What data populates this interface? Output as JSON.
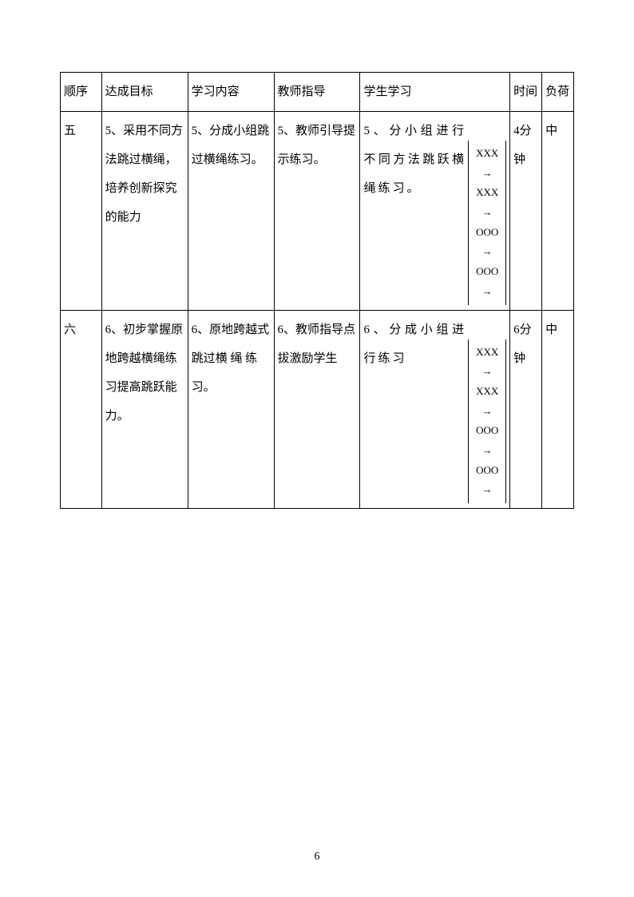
{
  "table": {
    "headers": {
      "seq": "顺序",
      "goal": "达成目标",
      "content": "学习内容",
      "teacher": "教师指导",
      "student": "学生学习",
      "time": "时间",
      "load": "负荷"
    },
    "rows": [
      {
        "seq": "五",
        "goal": "5、采用不同方法跳过横绳，培养创新探究的能力",
        "content": "5、分成小组跳过横绳练习。",
        "teacher": "5、教师引导提示练习。",
        "student_text": "5、分小组进行不同方法跳跃横绳练习。",
        "diagram": [
          "XXX",
          "→",
          "XXX",
          "→",
          "OOO",
          "→",
          "OOO",
          "→"
        ],
        "time": "4分钟",
        "load": "中"
      },
      {
        "seq": "六",
        "goal": "6、初步掌握原地跨越横绳练习提高跳跃能力。",
        "content": "6、原地跨越式跳过横 绳 练习。",
        "teacher": "6、教师指导点拔激励学生",
        "student_text": "6、分成小组进行练习",
        "diagram": [
          "XXX",
          "→",
          "XXX",
          "→",
          "OOO",
          "→",
          "OOO",
          "→"
        ],
        "time": "6分钟",
        "load": "中"
      }
    ]
  },
  "page_number": "6"
}
